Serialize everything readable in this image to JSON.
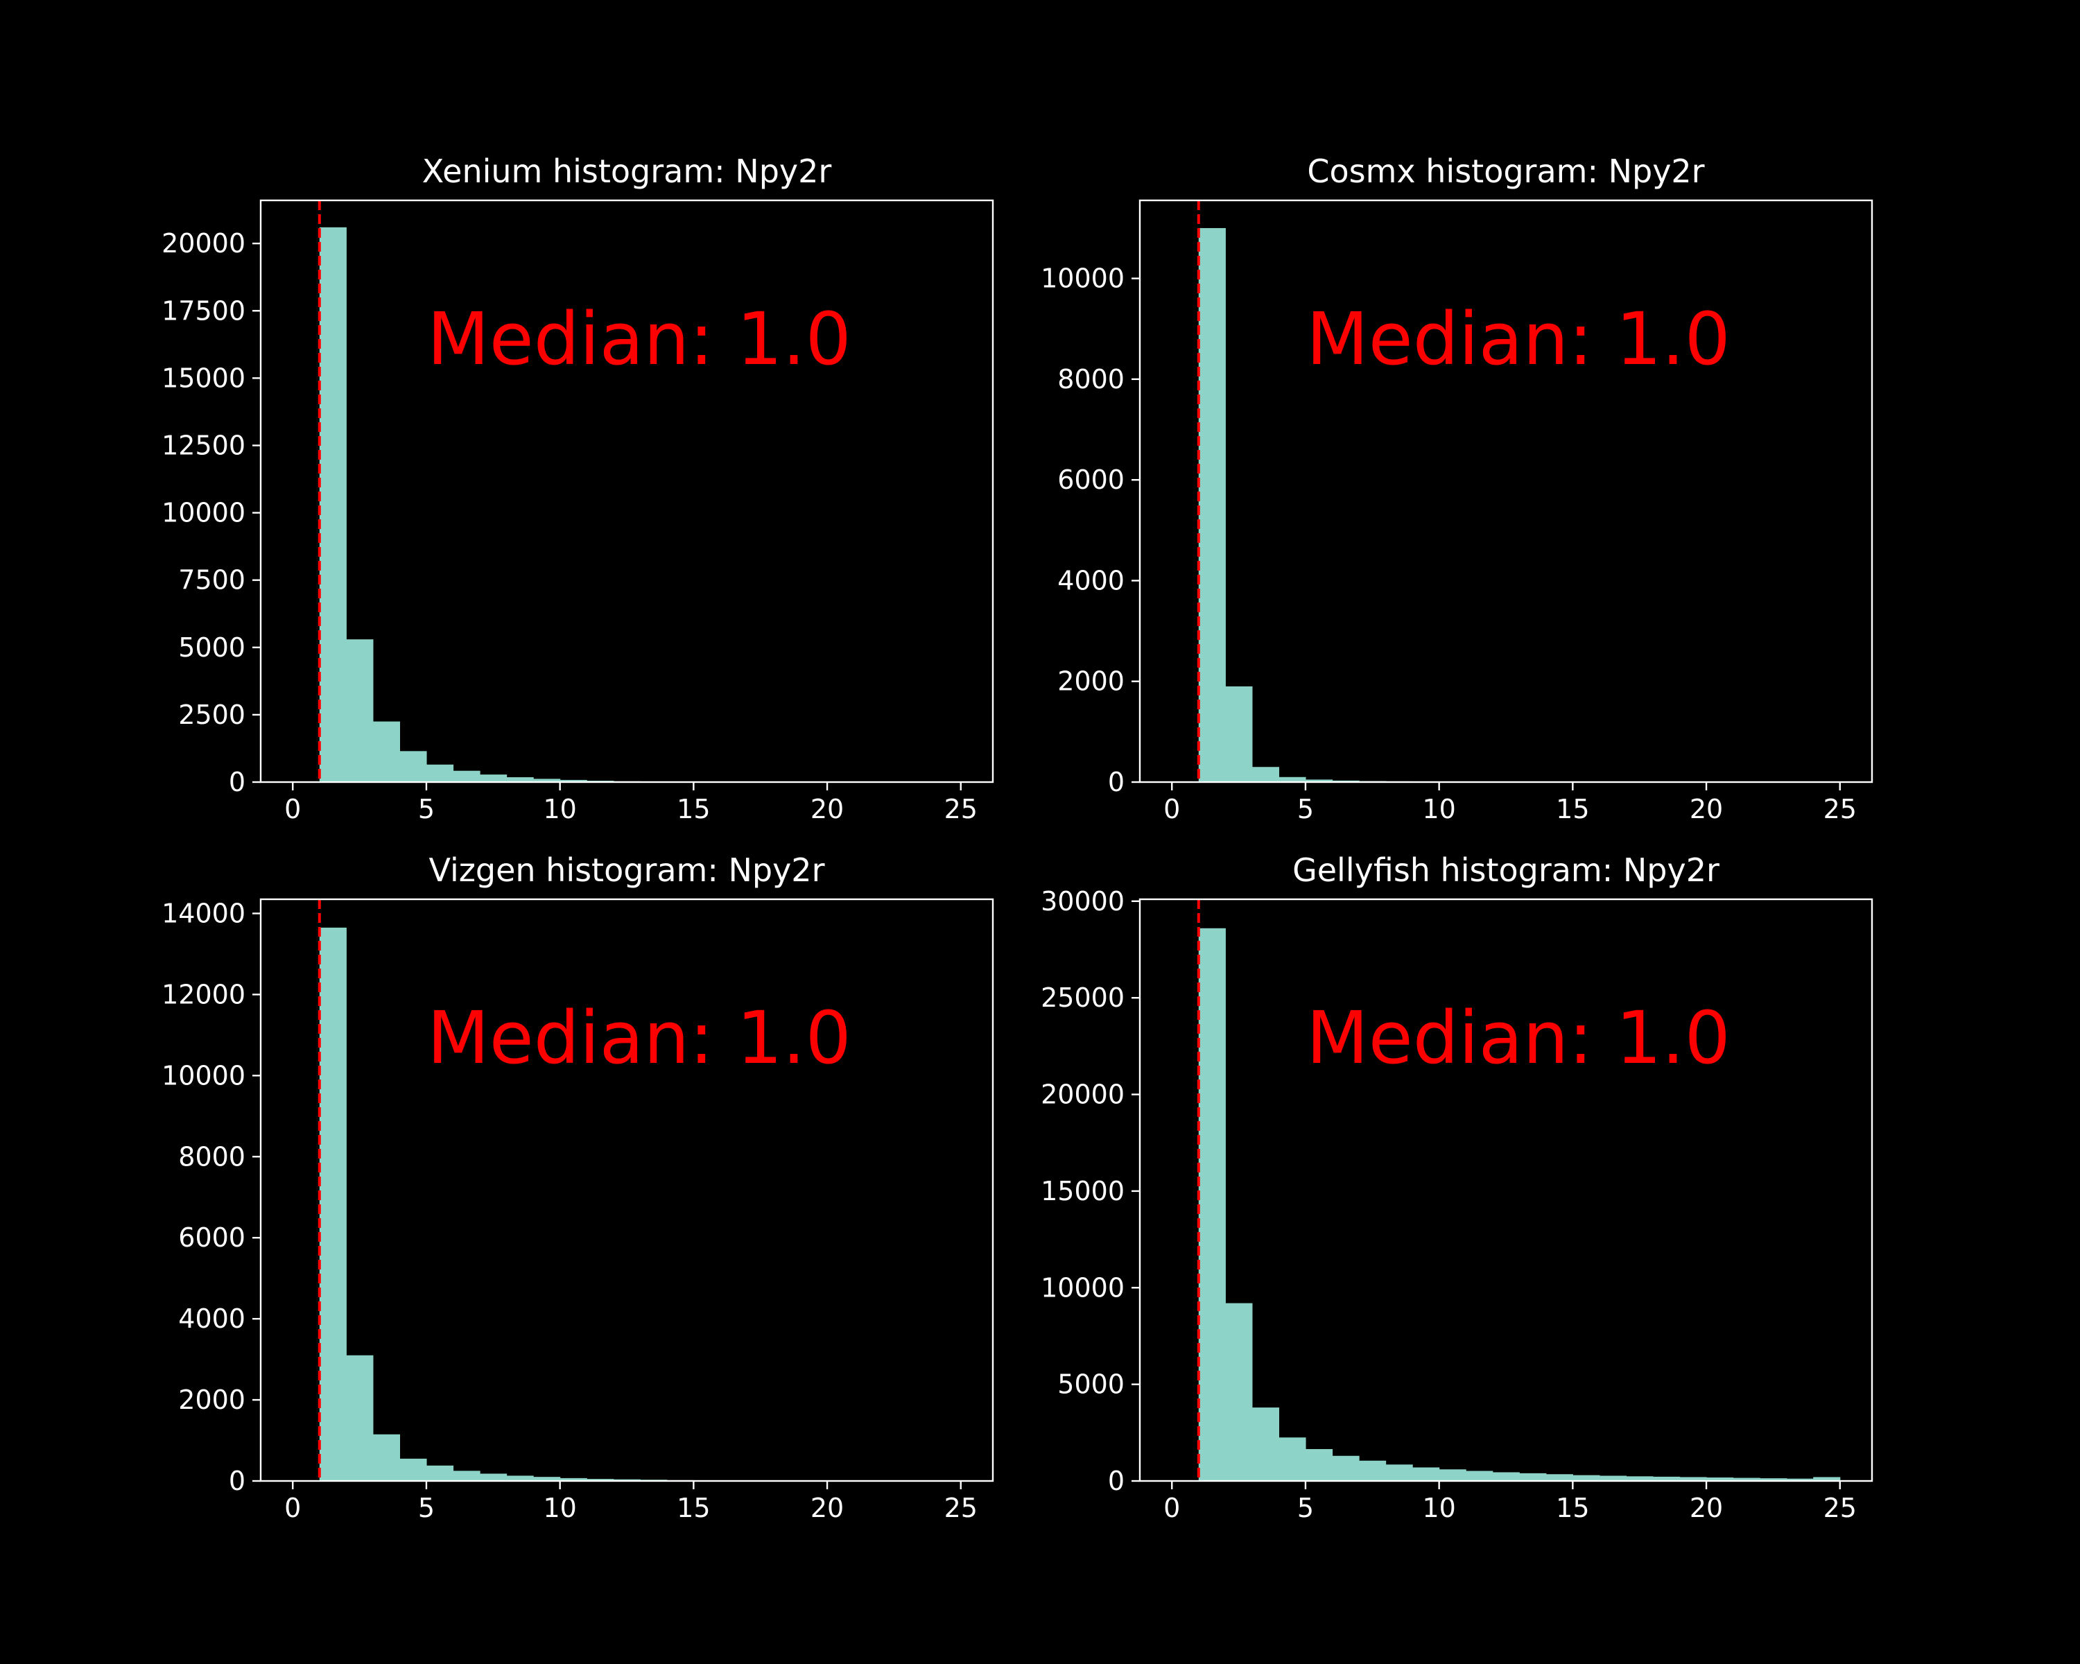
{
  "colors": {
    "background": "#000000",
    "bar": "#8dd3c7",
    "axis": "#ffffff",
    "median_line": "#ff0000",
    "median_text": "#ff0000"
  },
  "chart_data": [
    {
      "type": "bar",
      "title": "Xenium histogram: Npy2r",
      "annotation": "Median: 1.0",
      "median": 1.0,
      "bin_edges": [
        1,
        2,
        3,
        4,
        5,
        6,
        7,
        8,
        9,
        10,
        11,
        12,
        13,
        14,
        15,
        16,
        17,
        18,
        19,
        20,
        21,
        22,
        23,
        24,
        25
      ],
      "values": [
        20600,
        5300,
        2250,
        1150,
        650,
        420,
        280,
        180,
        120,
        80,
        50,
        30,
        20,
        15,
        10,
        8,
        6,
        5,
        4,
        3,
        3,
        2,
        2,
        2
      ],
      "xlim": [
        -1.2,
        26.2
      ],
      "ylim": [
        0,
        21600
      ],
      "xticks": [
        0,
        5,
        10,
        15,
        20,
        25
      ],
      "yticks": [
        0,
        2500,
        5000,
        7500,
        10000,
        12500,
        15000,
        17500,
        20000
      ]
    },
    {
      "type": "bar",
      "title": "Cosmx histogram: Npy2r",
      "annotation": "Median: 1.0",
      "median": 1.0,
      "bin_edges": [
        1,
        2,
        3,
        4,
        5,
        6,
        7,
        8,
        9,
        10,
        11,
        12,
        13,
        14,
        15,
        16,
        17,
        18,
        19,
        20,
        21,
        22,
        23,
        24,
        25
      ],
      "values": [
        11000,
        1900,
        300,
        100,
        50,
        30,
        20,
        15,
        10,
        8,
        5,
        4,
        3,
        2,
        2,
        1,
        1,
        1,
        1,
        1,
        1,
        1,
        1,
        1
      ],
      "xlim": [
        -1.2,
        26.2
      ],
      "ylim": [
        0,
        11550
      ],
      "xticks": [
        0,
        5,
        10,
        15,
        20,
        25
      ],
      "yticks": [
        0,
        2000,
        4000,
        6000,
        8000,
        10000
      ]
    },
    {
      "type": "bar",
      "title": "Vizgen histogram: Npy2r",
      "annotation": "Median: 1.0",
      "median": 1.0,
      "bin_edges": [
        1,
        2,
        3,
        4,
        5,
        6,
        7,
        8,
        9,
        10,
        11,
        12,
        13,
        14,
        15,
        16,
        17,
        18,
        19,
        20,
        21,
        22,
        23,
        24,
        25
      ],
      "values": [
        13650,
        3100,
        1150,
        550,
        380,
        250,
        180,
        130,
        100,
        70,
        50,
        40,
        30,
        20,
        15,
        10,
        8,
        6,
        5,
        4,
        3,
        3,
        2,
        2
      ],
      "xlim": [
        -1.2,
        26.2
      ],
      "ylim": [
        0,
        14350
      ],
      "xticks": [
        0,
        5,
        10,
        15,
        20,
        25
      ],
      "yticks": [
        0,
        2000,
        4000,
        6000,
        8000,
        10000,
        12000,
        14000
      ]
    },
    {
      "type": "bar",
      "title": "Gellyfish histogram: Npy2r",
      "annotation": "Median: 1.0",
      "median": 1.0,
      "bin_edges": [
        1,
        2,
        3,
        4,
        5,
        6,
        7,
        8,
        9,
        10,
        11,
        12,
        13,
        14,
        15,
        16,
        17,
        18,
        19,
        20,
        21,
        22,
        23,
        24,
        25
      ],
      "values": [
        28600,
        9200,
        3800,
        2250,
        1650,
        1300,
        1050,
        850,
        700,
        600,
        520,
        450,
        400,
        350,
        300,
        270,
        240,
        220,
        200,
        180,
        160,
        140,
        120,
        200
      ],
      "xlim": [
        -1.2,
        26.2
      ],
      "ylim": [
        0,
        30100
      ],
      "xticks": [
        0,
        5,
        10,
        15,
        20,
        25
      ],
      "yticks": [
        0,
        5000,
        10000,
        15000,
        20000,
        25000,
        30000
      ]
    }
  ]
}
